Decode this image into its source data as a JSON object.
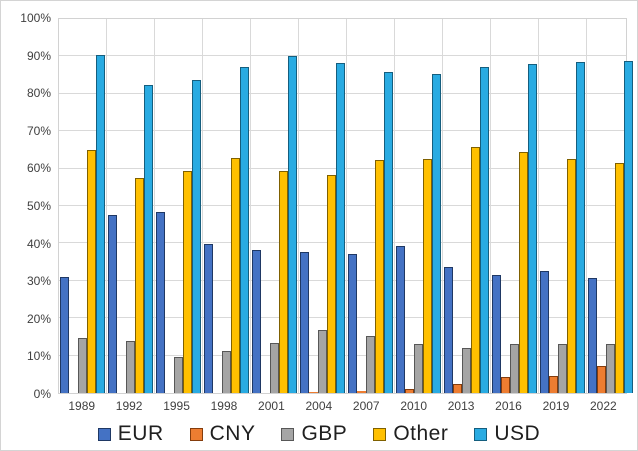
{
  "chart_data": {
    "type": "bar",
    "title": "",
    "xlabel": "",
    "ylabel": "",
    "categories": [
      "1989",
      "1992",
      "1995",
      "1998",
      "2001",
      "2004",
      "2007",
      "2010",
      "2013",
      "2016",
      "2019",
      "2022"
    ],
    "series": [
      {
        "name": "EUR",
        "color": "#4472C4",
        "border_color": "#1F3864",
        "values": [
          30.8,
          47.3,
          48.2,
          39.5,
          37.9,
          37.4,
          37.0,
          39.0,
          33.4,
          31.4,
          32.3,
          30.5
        ]
      },
      {
        "name": "CNY",
        "color": "#ED7D31",
        "border_color": "#843C0C",
        "values": [
          0,
          0,
          0,
          0,
          0,
          0.1,
          0.5,
          0.9,
          2.2,
          4.0,
          4.3,
          7.0
        ]
      },
      {
        "name": "GBP",
        "color": "#A5A5A5",
        "border_color": "#575757",
        "values": [
          14.5,
          13.6,
          9.4,
          11.0,
          13.0,
          16.5,
          14.9,
          12.9,
          11.8,
          12.8,
          12.8,
          12.9
        ]
      },
      {
        "name": "Other",
        "color": "#FFC000",
        "border_color": "#7F6000",
        "values": [
          64.7,
          57.1,
          59.1,
          62.7,
          59.2,
          58.0,
          62.0,
          62.3,
          65.6,
          64.2,
          62.3,
          61.1
        ]
      },
      {
        "name": "USD",
        "color": "#29ABE2",
        "border_color": "#155E7E",
        "values": [
          90.0,
          82.0,
          83.3,
          86.8,
          89.9,
          88.0,
          85.6,
          84.9,
          87.0,
          87.6,
          88.3,
          88.5
        ]
      }
    ],
    "ylim": [
      0,
      100
    ],
    "y_tick_step": 10,
    "y_tick_labels": [
      "0%",
      "10%",
      "20%",
      "30%",
      "40%",
      "50%",
      "60%",
      "70%",
      "80%",
      "90%",
      "100%"
    ],
    "grid": true,
    "vertical_category_gridlines": true,
    "legend_position": "bottom",
    "gridline_color": "#d9d9d9",
    "axis_text_color": "#404040",
    "legend_text_color": "#1f1f1f"
  }
}
